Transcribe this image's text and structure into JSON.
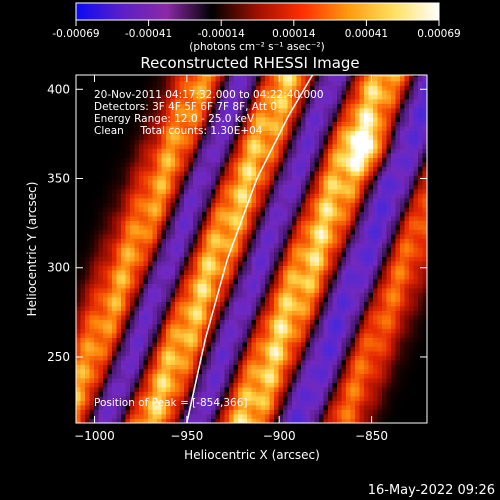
{
  "colorbar": {
    "ticks": [
      "-0.00069",
      "-0.00041",
      "-0.00014",
      "0.00014",
      "0.00041",
      "0.00069"
    ],
    "units_label": "(photons cm⁻² s⁻¹ asec⁻²)",
    "colors": [
      "#0a0af0",
      "#5b1fc8",
      "#8a2aa8",
      "#000000",
      "#a01000",
      "#ff3000",
      "#ff9a10",
      "#ffe060",
      "#ffffff"
    ]
  },
  "title": "Reconstructed RHESSI Image",
  "info": [
    "20-Nov-2011 04:17:32.000 to 04:22:40.000",
    "Detectors: 3F 4F 5F 6F 7F 8F, Att 0",
    "Energy Range: 12.0 - 25.0 keV",
    "Clean     Total counts: 1.30E+04"
  ],
  "peak_label": "Position of Peak = [-854,366]",
  "footer_date": "16-May-2022 09:26",
  "chart_data": {
    "type": "heatmap",
    "title": "Reconstructed RHESSI Image",
    "xlabel": "Heliocentric X (arcsec)",
    "ylabel": "Heliocentric Y (arcsec)",
    "xlim": [
      -1010,
      -820
    ],
    "ylim": [
      213,
      408
    ],
    "x_ticks": [
      -1000,
      -950,
      -900,
      -850
    ],
    "x_tick_labels": [
      "−1000",
      "−950",
      "−900",
      "−850"
    ],
    "y_ticks": [
      250,
      300,
      350,
      400
    ],
    "y_tick_labels": [
      "250",
      "300",
      "350",
      "400"
    ],
    "color_range": [
      -0.00069,
      0.00069
    ],
    "peak": [
      -854,
      366
    ],
    "limb_points": [
      [
        -950,
        213
      ],
      [
        -940,
        260
      ],
      [
        -928,
        305
      ],
      [
        -912,
        350
      ],
      [
        -895,
        385
      ],
      [
        -882,
        408
      ]
    ],
    "bands": [
      {
        "sign": "positive",
        "amplitude": 0.00058,
        "center": [
          -982,
          300
        ],
        "width": 10,
        "slope": 2.6
      },
      {
        "sign": "negative",
        "amplitude": 0.00046,
        "center": [
          -962,
          300
        ],
        "width": 9,
        "slope": 2.6
      },
      {
        "sign": "positive",
        "amplitude": 0.00066,
        "center": [
          -938,
          300
        ],
        "width": 11,
        "slope": 2.6
      },
      {
        "sign": "negative",
        "amplitude": 0.00044,
        "center": [
          -912,
          300
        ],
        "width": 8,
        "slope": 2.6
      },
      {
        "sign": "positive",
        "amplitude": 0.00069,
        "center": [
          -885,
          300
        ],
        "width": 12,
        "slope": 2.6
      },
      {
        "sign": "negative",
        "amplitude": 0.0005,
        "center": [
          -858,
          300
        ],
        "width": 10,
        "slope": 2.6
      },
      {
        "sign": "positive",
        "amplitude": 0.00045,
        "center": [
          -835,
          300
        ],
        "width": 9,
        "slope": 2.6
      }
    ]
  }
}
